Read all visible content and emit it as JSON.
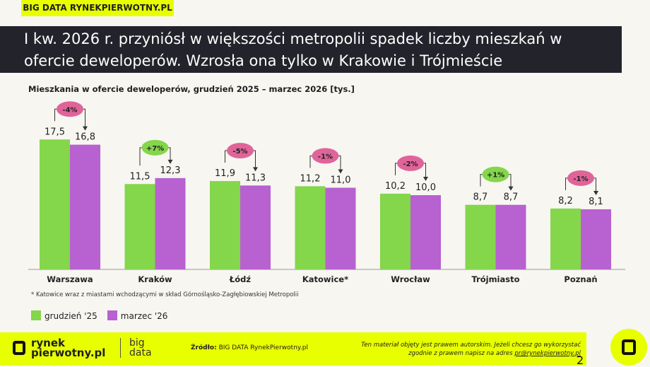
{
  "tag": "BIG DATA RYNEKPIERWOTNY.PL",
  "title_line1": "I kw. 2026 r. przyniósł w większości metropolii spadek liczby mieszkań w",
  "title_line2": "ofercie deweloperów. Wzrosła ona tylko w Krakowie i Trójmieście",
  "chart_data": {
    "type": "bar",
    "title": "Mieszkania w ofercie deweloperów, grudzień 2025 – marzec 2026 [tys.]",
    "categories": [
      "Warszawa",
      "Kraków",
      "Łódź",
      "Katowice*",
      "Wrocław",
      "Trójmiasto",
      "Poznań"
    ],
    "series": [
      {
        "name": "grudzień '25",
        "color": "#84d64a",
        "values": [
          17.5,
          11.5,
          11.9,
          11.2,
          10.2,
          8.7,
          8.2
        ],
        "labels": [
          "17,5",
          "11,5",
          "11,9",
          "11,2",
          "10,2",
          "8,7",
          "8,2"
        ]
      },
      {
        "name": "marzec '26",
        "color": "#b861d0",
        "values": [
          16.8,
          12.3,
          11.3,
          11.0,
          10.0,
          8.7,
          8.1
        ],
        "labels": [
          "16,8",
          "12,3",
          "11,3",
          "11,0",
          "10,0",
          "8,7",
          "8,1"
        ]
      }
    ],
    "changes": [
      "-4%",
      "+7%",
      "-5%",
      "-1%",
      "-2%",
      "+1%",
      "-1%"
    ],
    "change_colors": {
      "negative": "#e0649a",
      "positive": "#84d64a"
    },
    "ylim": [
      0,
      18
    ],
    "grid": false,
    "legend": "bottom-left"
  },
  "footnote": "* Katowice wraz z miastami wchodzącymi w skład Górnośląsko-Zagłębiowskiej Metropolii",
  "footer": {
    "logo_line1": "rynek",
    "logo_line2": "pierwotny.pl",
    "bigdata_line1": "big",
    "bigdata_line2": "data",
    "source_label": "Źródło:",
    "source": " BIG DATA RynekPierwotny.pl",
    "copyright_line1": "Ten materiał objęty jest prawem autorskim. Jeżeli chcesz go wykorzystać",
    "copyright_line2": "zgodnie z prawem napisz na adres ",
    "email": "pr@rynekpierwotny.pl",
    "page": "2"
  }
}
